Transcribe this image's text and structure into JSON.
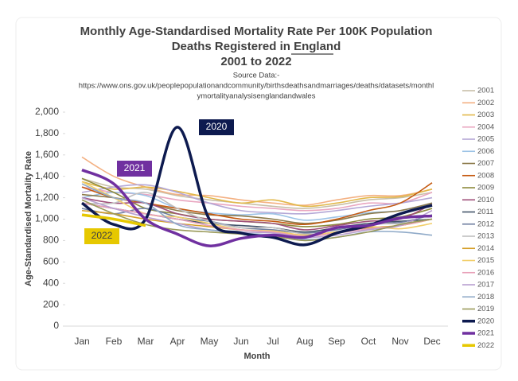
{
  "chart_data": {
    "type": "line",
    "title": [
      "Monthly Age-Standardised Mortality Rate Per 100K Population",
      "Deaths Registered in England",
      "2001 to 2022"
    ],
    "subtitle": [
      "Source Data:-",
      "https://www.ons.gov.uk/peoplepopulationandcommunity/birthsdeathsandmarriages/deaths/datasets/monthl",
      "ymortalityanalysisenglandandwales"
    ],
    "y_label": "Age-Standardised Mortality Rate",
    "x_label": "Month",
    "categories": [
      "Jan",
      "Feb",
      "Mar",
      "Apr",
      "May",
      "Jun",
      "Jul",
      "Aug",
      "Sep",
      "Oct",
      "Nov",
      "Dec"
    ],
    "ylim": [
      0,
      2000
    ],
    "yticks": [
      0,
      200,
      400,
      600,
      800,
      {
        "value": 1000,
        "label": "1,000"
      },
      {
        "value": 1200,
        "label": "1,200"
      },
      {
        "value": 1400,
        "label": "1,400"
      },
      {
        "value": 1600,
        "label": "1,600"
      },
      {
        "value": 1800,
        "label": "1,800"
      },
      {
        "value": 2000,
        "label": "2,000"
      }
    ],
    "legend": "right",
    "annotations": [
      {
        "text": "2020",
        "color": "#0d1a4f"
      },
      {
        "text": "2021",
        "color": "#7030a0"
      },
      {
        "text": "2022",
        "color": "#e6c800"
      }
    ],
    "series": [
      {
        "name": "2001",
        "color": "#c8bfa8",
        "values": [
          1380,
          1300,
          1280,
          1220,
          1180,
          1150,
          1120,
          1100,
          1130,
          1180,
          1200,
          1250
        ]
      },
      {
        "name": "2002",
        "color": "#f4b183",
        "values": [
          1580,
          1400,
          1300,
          1230,
          1220,
          1180,
          1150,
          1130,
          1180,
          1220,
          1220,
          1280
        ]
      },
      {
        "name": "2003",
        "color": "#e2b84a",
        "values": [
          1350,
          1280,
          1300,
          1260,
          1200,
          1150,
          1180,
          1120,
          1150,
          1200,
          1210,
          1280
        ]
      },
      {
        "name": "2004",
        "color": "#e9a6c0",
        "values": [
          1300,
          1250,
          1230,
          1180,
          1150,
          1120,
          1100,
          1080,
          1100,
          1150,
          1150,
          1250
        ]
      },
      {
        "name": "2005",
        "color": "#b4a7d6",
        "values": [
          1250,
          1300,
          1320,
          1250,
          1150,
          1080,
          1060,
          1050,
          1080,
          1120,
          1150,
          1200
        ]
      },
      {
        "name": "2006",
        "color": "#9dc3e6",
        "values": [
          1200,
          1250,
          1220,
          1100,
          1060,
          1040,
          1050,
          990,
          1020,
          1060,
          1080,
          1150
        ]
      },
      {
        "name": "2007",
        "color": "#8c7a4a",
        "values": [
          1230,
          1200,
          1150,
          1080,
          1040,
          1030,
          1000,
          960,
          990,
          1050,
          1080,
          1150
        ]
      },
      {
        "name": "2008",
        "color": "#c55a11",
        "values": [
          1300,
          1200,
          1150,
          1100,
          1050,
          1000,
          980,
          950,
          1000,
          1080,
          1150,
          1340
        ]
      },
      {
        "name": "2009",
        "color": "#8d8a3c",
        "values": [
          1380,
          1250,
          1100,
          1050,
          1000,
          980,
          960,
          930,
          950,
          1000,
          1020,
          1100
        ]
      },
      {
        "name": "2010",
        "color": "#a0507a",
        "values": [
          1200,
          1150,
          1150,
          1050,
          1000,
          980,
          960,
          900,
          940,
          980,
          1000,
          1140
        ]
      },
      {
        "name": "2011",
        "color": "#44546a",
        "values": [
          1150,
          1100,
          1050,
          1000,
          960,
          940,
          920,
          880,
          920,
          960,
          980,
          1000
        ]
      },
      {
        "name": "2012",
        "color": "#6f7fa0",
        "values": [
          1100,
          1050,
          1100,
          1020,
          980,
          920,
          900,
          870,
          900,
          950,
          970,
          1040
        ]
      },
      {
        "name": "2013",
        "color": "#bfbfbf",
        "values": [
          1150,
          1150,
          1250,
          1100,
          980,
          920,
          920,
          860,
          880,
          950,
          960,
          1000
        ]
      },
      {
        "name": "2014",
        "color": "#d6a02a",
        "values": [
          1080,
          1050,
          1000,
          960,
          930,
          900,
          880,
          850,
          880,
          920,
          940,
          1000
        ]
      },
      {
        "name": "2015",
        "color": "#f2cf6b",
        "values": [
          1350,
          1200,
          1050,
          1020,
          960,
          900,
          890,
          850,
          880,
          930,
          910,
          960
        ]
      },
      {
        "name": "2016",
        "color": "#e8a0b8",
        "values": [
          1150,
          1100,
          1050,
          1000,
          940,
          900,
          880,
          840,
          870,
          910,
          940,
          1000
        ]
      },
      {
        "name": "2017",
        "color": "#b9a0d0",
        "values": [
          1200,
          1100,
          1020,
          960,
          900,
          880,
          870,
          830,
          850,
          900,
          940,
          1080
        ]
      },
      {
        "name": "2018",
        "color": "#8faac8",
        "values": [
          1330,
          1200,
          1150,
          950,
          900,
          870,
          850,
          810,
          830,
          880,
          880,
          850
        ]
      },
      {
        "name": "2019",
        "color": "#9a9a5a",
        "values": [
          1180,
          1050,
          950,
          900,
          880,
          860,
          840,
          800,
          830,
          880,
          950,
          1000
        ]
      },
      {
        "name": "2020",
        "color": "#0d1a4f",
        "width": 3.5,
        "values": [
          1150,
          950,
          1000,
          1860,
          1000,
          870,
          830,
          760,
          870,
          940,
          1050,
          1130
        ]
      },
      {
        "name": "2021",
        "color": "#7030a0",
        "width": 3.5,
        "values": [
          1460,
          1330,
          1000,
          860,
          750,
          820,
          850,
          830,
          920,
          940,
          1010,
          1030
        ]
      },
      {
        "name": "2022",
        "color": "#e6c800",
        "width": 3.5,
        "values": [
          1040,
          1000,
          940,
          null,
          null,
          null,
          null,
          null,
          null,
          null,
          null,
          null
        ]
      }
    ]
  }
}
